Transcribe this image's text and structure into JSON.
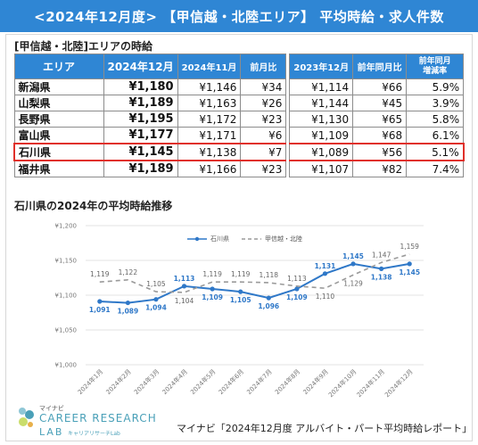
{
  "banner": {
    "title": "<2024年12月度> 【甲信越・北陸エリア】 平均時給・求人件数"
  },
  "table_section": {
    "title": "[甲信越・北陸]エリアの時給"
  },
  "table": {
    "headers": [
      "エリア",
      "2024年12月",
      "2024年11月",
      "前月比",
      "2023年12月",
      "前年同月比",
      "前年同月\n増減率"
    ],
    "rows": [
      {
        "pref": "新潟県",
        "dec24": "¥1,180",
        "nov24": "¥1,146",
        "mom": "¥34",
        "dec23": "¥1,114",
        "yoy": "¥66",
        "rate": "5.9%"
      },
      {
        "pref": "山梨県",
        "dec24": "¥1,189",
        "nov24": "¥1,163",
        "mom": "¥26",
        "dec23": "¥1,144",
        "yoy": "¥45",
        "rate": "3.9%"
      },
      {
        "pref": "長野県",
        "dec24": "¥1,195",
        "nov24": "¥1,172",
        "mom": "¥23",
        "dec23": "¥1,130",
        "yoy": "¥65",
        "rate": "5.8%"
      },
      {
        "pref": "富山県",
        "dec24": "¥1,177",
        "nov24": "¥1,171",
        "mom": "¥6",
        "dec23": "¥1,109",
        "yoy": "¥68",
        "rate": "6.1%"
      },
      {
        "pref": "石川県",
        "dec24": "¥1,145",
        "nov24": "¥1,138",
        "mom": "¥7",
        "dec23": "¥1,089",
        "yoy": "¥56",
        "rate": "5.1%",
        "highlight": true
      },
      {
        "pref": "福井県",
        "dec24": "¥1,189",
        "nov24": "¥1,166",
        "mom": "¥23",
        "dec23": "¥1,107",
        "yoy": "¥82",
        "rate": "7.4%"
      }
    ]
  },
  "chart_section": {
    "title": "石川県の2024年の平均時給推移"
  },
  "chart_data": {
    "type": "line",
    "x": [
      "2024年1月",
      "2024年2月",
      "2024年3月",
      "2024年4月",
      "2024年5月",
      "2024年6月",
      "2024年7月",
      "2024年8月",
      "2024年9月",
      "2024年10月",
      "2024年11月",
      "2024年12月"
    ],
    "series": [
      {
        "name": "石川県",
        "values": [
          1091,
          1089,
          1094,
          1113,
          1109,
          1105,
          1096,
          1109,
          1131,
          1145,
          1138,
          1145
        ],
        "color": "#2f78c8",
        "style": "solid"
      },
      {
        "name": "甲信越・北陸",
        "values": [
          1119,
          1122,
          1105,
          1104,
          1119,
          1119,
          1118,
          1113,
          1110,
          1129,
          1147,
          1159
        ],
        "color": "#9a9a9a",
        "style": "dashed"
      }
    ],
    "yticks": [
      "¥1,000",
      "¥1,050",
      "¥1,100",
      "¥1,150",
      "¥1,200"
    ],
    "ylim": [
      1000,
      1200
    ],
    "grid": true,
    "legend": "top-center"
  },
  "footer": {
    "brand_small": "マイナビ",
    "brand_main": "CAREER RESEARCH",
    "brand_lab": "LAB",
    "brand_sub": "キャリアリサーチLab",
    "source": "マイナビ「2024年12月度 アルバイト・パート平均時給レポート」"
  },
  "colors": {
    "accent": "#2f86d4",
    "highlight": "#e0302a",
    "series_main": "#2f78c8",
    "series_area": "#9a9a9a"
  }
}
